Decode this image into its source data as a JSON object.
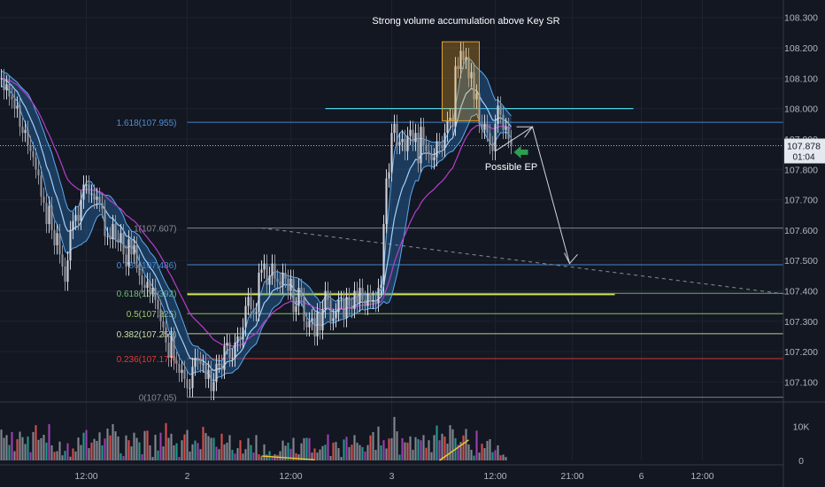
{
  "chart_data": {
    "type": "candlestick",
    "symbol_currency": "USDJPY",
    "price_axis": {
      "ylim": [
        107.04,
        108.34
      ],
      "ticks": [
        "108.300",
        "108.200",
        "108.100",
        "108.000",
        "107.900",
        "107.800",
        "107.700",
        "107.600",
        "107.500",
        "107.400",
        "107.300",
        "107.200",
        "107.100"
      ],
      "last_price_label": "107.878",
      "last_price": 107.878,
      "countdown_label": "01:04",
      "last_price_color": "#e5e8ef"
    },
    "volume_axis": {
      "ylim": [
        0,
        15000
      ],
      "ticks": [
        {
          "label": "10K",
          "value": 10000
        },
        {
          "label": "0",
          "value": 0
        }
      ]
    },
    "time_axis": {
      "ticks": [
        {
          "label": "12:00",
          "bar": 32
        },
        {
          "label": "2",
          "bar": 70
        },
        {
          "label": "12:00",
          "bar": 109
        },
        {
          "label": "3",
          "bar": 147
        },
        {
          "label": "12:00",
          "bar": 186
        },
        {
          "label": "21:00",
          "bar": 215
        },
        {
          "label": "6",
          "bar": 241
        },
        {
          "label": "12:00",
          "bar": 264
        }
      ],
      "bars_total": 295
    },
    "fibonacci_levels": [
      {
        "ratio": "1.618",
        "price": 107.955,
        "label": "1.618(107.955)",
        "color": "#4a90d9"
      },
      {
        "ratio": "1",
        "price": 107.607,
        "label": "1(107.607)",
        "color": "#8a8d96"
      },
      {
        "ratio": "0.786",
        "price": 107.486,
        "label": "0.786(107.486)",
        "color": "#4a90d9"
      },
      {
        "ratio": "0.618",
        "price": 107.392,
        "label": "0.618(107.392)",
        "color": "#6fbf73"
      },
      {
        "ratio": "0.5",
        "price": 107.325,
        "label": "0.5(107.325)",
        "color": "#9ccc65"
      },
      {
        "ratio": "0.382",
        "price": 107.259,
        "label": "0.382(107.259)",
        "color": "#c5e1a5"
      },
      {
        "ratio": "0.236",
        "price": 107.177,
        "label": "0.236(107.177)",
        "color": "#e53935"
      },
      {
        "ratio": "0",
        "price": 107.05,
        "label": "0(107.05)",
        "color": "#8a8d96"
      }
    ],
    "key_sr_line": {
      "price": 108.0,
      "from_bar": 122,
      "to_bar": 238,
      "color": "#4dd0e1"
    },
    "yellow_line": {
      "price": 107.388,
      "from_bar": 70,
      "to_bar": 231,
      "color": "#d4e157"
    },
    "trend_line": {
      "from": {
        "bar": 98,
        "price": 107.607
      },
      "to": {
        "bar": 295,
        "price": 107.39
      }
    },
    "annotations": [
      {
        "text": "Strong volume accumulation above Key SR",
        "bar": 175,
        "price": 108.29
      },
      {
        "text": "Possible EP",
        "bar": 194,
        "price": 107.81
      }
    ],
    "volume_box": {
      "from_bar": 166,
      "to_bar": 180,
      "price_top": 108.22,
      "price_bottom": 107.96
    },
    "colors": {
      "up": "#d1d4dc",
      "down": "#8f929b",
      "ribbon": "#2f7fc9",
      "slow_ma": "#b540c9"
    },
    "series": [
      {
        "name": "price",
        "values": [
          108.1,
          108.06,
          108.08,
          108.04,
          108.03,
          108.0,
          108.01,
          107.94,
          107.92,
          107.93,
          107.88,
          107.86,
          107.84,
          107.8,
          107.78,
          107.71,
          107.69,
          107.62,
          107.68,
          107.6,
          107.55,
          107.59,
          107.52,
          107.48,
          107.43,
          107.5,
          107.6,
          107.63,
          107.65,
          107.63,
          107.7,
          107.75,
          107.75,
          107.72,
          107.72,
          107.7,
          107.71,
          107.69,
          107.67,
          107.58,
          107.58,
          107.57,
          107.62,
          107.57,
          107.56,
          107.59,
          107.52,
          107.48,
          107.57,
          107.52,
          107.55,
          107.49,
          107.45,
          107.42,
          107.41,
          107.43,
          107.39,
          107.41,
          107.37,
          107.34,
          107.3,
          107.28,
          107.23,
          107.18,
          107.25,
          107.17,
          107.16,
          107.13,
          107.14,
          107.11,
          107.08,
          107.08,
          107.15,
          107.18,
          107.17,
          107.16,
          107.16,
          107.11,
          107.14,
          107.07,
          107.1,
          107.16,
          107.16,
          107.14,
          107.22,
          107.23,
          107.18,
          107.18,
          107.23,
          107.25,
          107.24,
          107.28,
          107.35,
          107.38,
          107.34,
          107.33,
          107.33,
          107.46,
          107.47,
          107.49,
          107.42,
          107.45,
          107.49,
          107.44,
          107.43,
          107.42,
          107.46,
          107.44,
          107.4,
          107.44,
          107.33,
          107.35,
          107.41,
          107.38,
          107.3,
          107.28,
          107.3,
          107.31,
          107.25,
          107.33,
          107.27,
          107.34,
          107.4,
          107.37,
          107.3,
          107.31,
          107.33,
          107.37,
          107.37,
          107.31,
          107.38,
          107.35,
          107.34,
          107.4,
          107.36,
          107.41,
          107.37,
          107.35,
          107.39,
          107.37,
          107.37,
          107.36,
          107.41,
          107.42,
          107.62,
          107.77,
          107.79,
          107.92,
          107.95,
          107.88,
          107.89,
          107.9,
          107.86,
          107.91,
          107.93,
          107.89,
          107.92,
          107.82,
          107.94,
          107.88,
          107.86,
          107.85,
          107.83,
          107.84,
          107.89,
          107.88,
          107.87,
          107.92,
          107.96,
          107.97,
          107.94,
          108.14,
          108.13,
          108.19,
          108.16,
          108.17,
          108.1,
          108.12,
          108.03,
          108.05,
          107.95,
          107.93,
          107.95,
          107.92,
          107.88,
          107.86,
          107.95,
          108.01,
          107.98,
          107.93,
          107.94,
          107.9,
          107.88
        ]
      },
      {
        "name": "volume",
        "values": [
          9000,
          6600,
          7400,
          4500,
          8300,
          2700,
          6200,
          8400,
          6800,
          4800,
          7000,
          2400,
          8300,
          10300,
          6000,
          6500,
          7500,
          5200,
          10600,
          4400,
          2500,
          2700,
          5500,
          1500,
          2800,
          5000,
          1100,
          3500,
          2600,
          6700,
          4500,
          8100,
          8900,
          3600,
          5200,
          6300,
          5700,
          8200,
          4400,
          6400,
          9300,
          7300,
          10600,
          8500,
          7000,
          2100,
          1300,
          7300,
          5900,
          4100,
          8100,
          6600,
          5300,
          1800,
          8600,
          8700,
          4400,
          1000,
          7500,
          2900,
          8100,
          4100,
          10900,
          6600,
          7800,
          4400,
          5000,
          1000,
          5900,
          7600,
          8900,
          2600,
          4700,
          5800,
          5100,
          3300,
          9800,
          8000,
          7100,
          6600,
          6600,
          4000,
          3300,
          7800,
          4700,
          5200,
          7400,
          3100,
          2000,
          3600,
          5900,
          2000,
          3300,
          6500,
          4500,
          2300,
          7400,
          1800,
          1200,
          4700,
          1700,
          2700,
          1400,
          1800,
          1600,
          2700,
          5800,
          4300,
          5200,
          3400,
          6600,
          2100,
          1800,
          5000,
          6500,
          6600,
          6500,
          2300,
          3500,
          2300,
          3200,
          4200,
          4600,
          7600,
          1300,
          5200,
          5400,
          3600,
          1000,
          6100,
          6900,
          3900,
          4600,
          7400,
          5200,
          4500,
          3900,
          2600,
          4500,
          7300,
          8300,
          3100,
          9900,
          4400,
          5900,
          3500,
          6400,
          6500,
          12700,
          8500,
          1700,
          6500,
          5300,
          5200,
          7000,
          3100,
          6800,
          6200,
          5900,
          7400,
          3700,
          5900,
          2400,
          7400,
          10200,
          5900,
          7800,
          7000,
          4900,
          10300,
          9100,
          6500,
          4600,
          5400,
          7300,
          9200,
          4700,
          3100,
          1400,
          8700,
          2300,
          4900,
          3600,
          5700,
          6200,
          2400,
          3000,
          4400,
          1500,
          1700,
          1000
        ]
      }
    ]
  }
}
